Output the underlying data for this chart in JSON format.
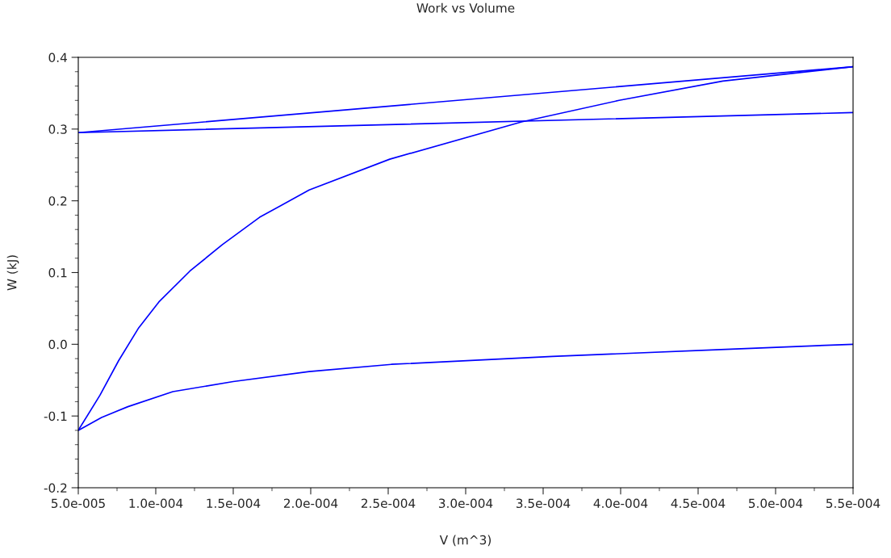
{
  "chart_data": {
    "type": "line",
    "title": "Work vs Volume",
    "xlabel": "V (m^3)",
    "ylabel": "W (kJ)",
    "xlim": [
      5e-05,
      0.00055
    ],
    "xticks": [
      {
        "value": 5e-05,
        "label": "5.0e-005"
      },
      {
        "value": 0.0001,
        "label": "1.0e-004"
      },
      {
        "value": 0.00015,
        "label": "1.5e-004"
      },
      {
        "value": 0.0002,
        "label": "2.0e-004"
      },
      {
        "value": 0.00025,
        "label": "2.5e-004"
      },
      {
        "value": 0.0003,
        "label": "3.0e-004"
      },
      {
        "value": 0.00035,
        "label": "3.5e-004"
      },
      {
        "value": 0.0004,
        "label": "4.0e-004"
      },
      {
        "value": 0.00045,
        "label": "4.5e-004"
      },
      {
        "value": 0.0005,
        "label": "5.0e-004"
      },
      {
        "value": 0.00055,
        "label": "5.5e-004"
      }
    ],
    "ylim": [
      -0.2,
      0.4
    ],
    "yticks": [
      -0.2,
      -0.1,
      {
        "value": 0,
        "label": "0.0"
      },
      0.1,
      0.2,
      0.3,
      0.4
    ],
    "grid": false,
    "legend": false,
    "marker": "none",
    "line_style": "solid",
    "series": [
      {
        "color": "#0000ff",
        "x": [
          5e-05,
          6.4e-05,
          7.6e-05,
          8.9e-05,
          0.000102,
          0.000122,
          0.000143,
          0.000167,
          0.000199,
          0.000251,
          0.000336,
          0.000399,
          0.000466,
          0.00055
        ],
        "values": [
          -0.12,
          -0.071,
          -0.023,
          0.023,
          0.059,
          0.102,
          0.139,
          0.177,
          0.215,
          0.258,
          0.31,
          0.34,
          0.367,
          0.387
        ]
      },
      {
        "color": "#0000ff",
        "x": [
          5e-05,
          0.00055
        ],
        "values": [
          0.295,
          0.387
        ]
      },
      {
        "color": "#0000ff",
        "x": [
          5e-05,
          0.00055
        ],
        "values": [
          0.295,
          0.323
        ]
      },
      {
        "color": "#0000ff",
        "x": [
          5e-05,
          6.5e-05,
          8.2e-05,
          0.000111,
          0.00015,
          0.000199,
          0.000252,
          0.000356,
          0.000468,
          0.00055
        ],
        "values": [
          -0.12,
          -0.102,
          -0.087,
          -0.066,
          -0.052,
          -0.038,
          -0.028,
          -0.017,
          -0.007,
          0.0
        ]
      }
    ]
  }
}
